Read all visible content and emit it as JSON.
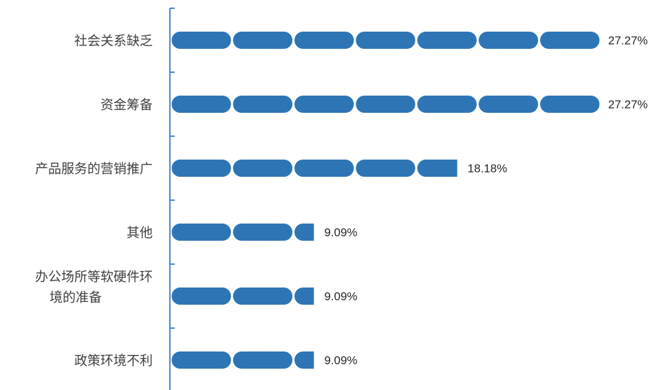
{
  "chart_data": {
    "type": "bar",
    "orientation": "horizontal",
    "categories": [
      "社会关系缺乏",
      "资金筹备",
      "产品服务的营销推广",
      "其他",
      "办公场所等软硬件环境的准备",
      "政策环境不利"
    ],
    "category_lines": [
      [
        "社会关系缺乏"
      ],
      [
        "资金筹备"
      ],
      [
        "产品服务的营销推广"
      ],
      [
        "其他"
      ],
      [
        "办公场所等软硬件环",
        "境的准备"
      ],
      [
        "政策环境不利"
      ]
    ],
    "values": [
      27.27,
      27.27,
      18.18,
      9.09,
      9.09,
      9.09
    ],
    "value_labels": [
      "27.27%",
      "27.27%",
      "18.18%",
      "9.09%",
      "9.09%",
      "9.09%"
    ],
    "unit": "%",
    "xlim": [
      0,
      27.27
    ],
    "grid": false,
    "bar_color": "#2e75b6",
    "bar_edge_color": "#ffffff",
    "axis_color": "#4a86c8",
    "title": "",
    "xlabel": "",
    "ylabel": ""
  }
}
